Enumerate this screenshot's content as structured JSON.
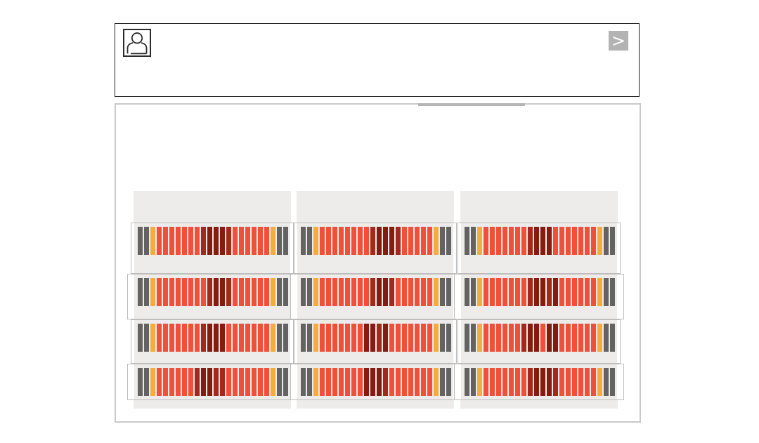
{
  "toolbar": {
    "next_button_label": ">",
    "avatar_icon": "user-silhouette-icon"
  },
  "palette": {
    "G": "#636363",
    "O": "#f6ab3d",
    "R": "#f0503a",
    "D": "#a2291b",
    "M": "#861c11",
    "panel_bg": "#edecea",
    "shelf_border": "#bdbdbd",
    "main_border": "#c9c9c9",
    "button_bg": "#b3b3b3",
    "button_fg": "#ffffff"
  },
  "legend": {
    "G": "gray-cap-slot",
    "O": "orange-slot",
    "R": "red-slot",
    "D": "dark-red-slot",
    "M": "maroon-slot"
  },
  "grid": {
    "columns": [
      {
        "name": "rack-column-1",
        "shelves": [
          "GGORRRRRRRDMMMDRRRRRROGG",
          "GGORRRRRRRRDMMDRRRRRROGG",
          "GGORRRRRRRDMMMRRRRRRROGG",
          "GGORRRRRRDMMDDRRRRRRROGG"
        ]
      },
      {
        "name": "rack-column-2",
        "shelves": [
          "GGORRRRRRRRDMMMDRRRRROGG",
          "GGORRRRRRRRDMMDRRRRRROGG",
          "GGORRRRRRRMMDMRRRRRRROGG",
          "GGORRRRRRRMMMDRRRRRRROGG"
        ]
      },
      {
        "name": "rack-column-3",
        "shelves": [
          "GGORRRRRRRDMMMRRRRRRROGG",
          "GGORRRRRRRDMMDMRRRRRROGG",
          "GGORRRRRRDMMRMMRRRRRROGG",
          "GGORRRRRRRDMMMDRRRRRROGG"
        ]
      }
    ]
  }
}
